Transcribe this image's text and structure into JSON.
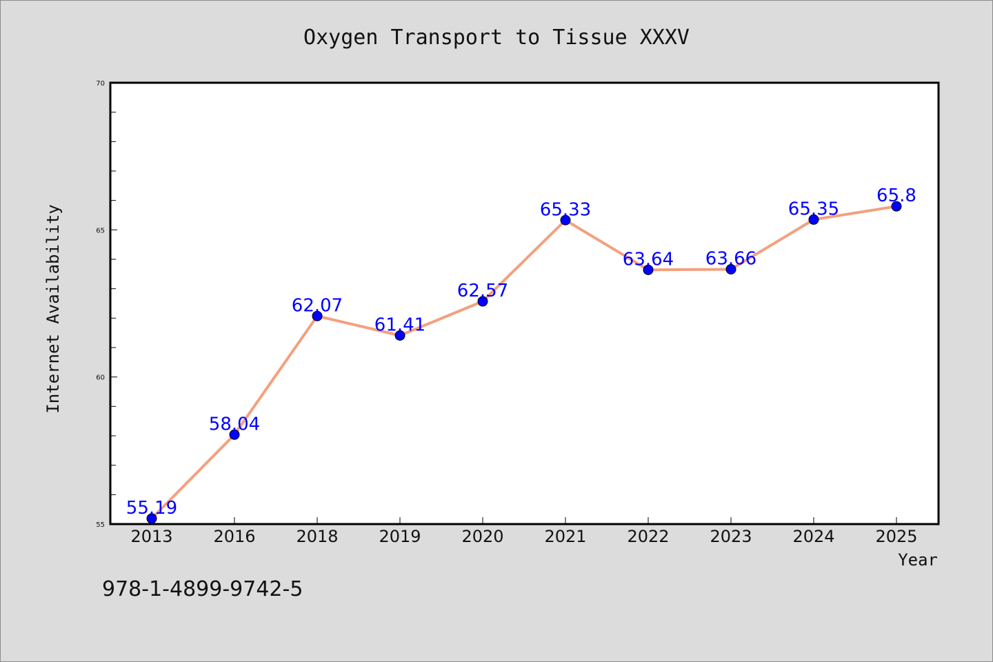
{
  "chart_data": {
    "type": "line",
    "title": "Oxygen Transport to Tissue XXXV",
    "xlabel": "Year",
    "ylabel": "Internet Availability",
    "categories": [
      "2013",
      "2016",
      "2018",
      "2019",
      "2020",
      "2021",
      "2022",
      "2023",
      "2024",
      "2025"
    ],
    "values": [
      55.19,
      58.04,
      62.07,
      61.41,
      62.57,
      65.33,
      63.64,
      63.66,
      65.35,
      65.8
    ],
    "data_labels": [
      "55.19",
      "58.04",
      "62.07",
      "61.41",
      "62.57",
      "65.33",
      "63.64",
      "63.66",
      "65.35",
      "65.8"
    ],
    "ylim": [
      55,
      70
    ],
    "yticks": [
      "55",
      "60",
      "65",
      "70"
    ],
    "grid": false,
    "line_color": "#f4a07e",
    "marker_color": "#0000ff",
    "label_color": "#0000ff"
  },
  "footer": {
    "isbn": "978-1-4899-9742-5"
  }
}
